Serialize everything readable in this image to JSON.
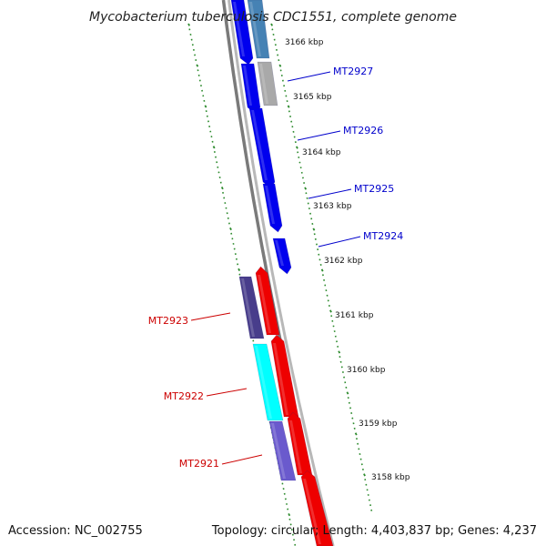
{
  "title": "Mycobacterium tuberculosis CDC1551, complete genome",
  "footer": {
    "accession": "Accession: NC_002755",
    "summary": "Topology: circular; Length: 4,403,837 bp; Genes: 4,237"
  },
  "colors": {
    "forward_label": "#0000cc",
    "reverse_label": "#cc0000",
    "backbone": "#808080",
    "ticks": "#2e8b2e"
  },
  "ruler": [
    {
      "label": "3166 kbp"
    },
    {
      "label": "3165 kbp"
    },
    {
      "label": "3164 kbp"
    },
    {
      "label": "3163 kbp"
    },
    {
      "label": "3162 kbp"
    },
    {
      "label": "3161 kbp"
    },
    {
      "label": "3160 kbp"
    },
    {
      "label": "3159 kbp"
    },
    {
      "label": "3158 kbp"
    }
  ],
  "gene_labels": [
    {
      "name": "MT2927",
      "strand": "forward"
    },
    {
      "name": "MT2926",
      "strand": "forward"
    },
    {
      "name": "MT2925",
      "strand": "forward"
    },
    {
      "name": "MT2924",
      "strand": "forward"
    },
    {
      "name": "MT2923",
      "strand": "reverse"
    },
    {
      "name": "MT2922",
      "strand": "reverse"
    },
    {
      "name": "MT2921",
      "strand": "reverse"
    }
  ],
  "features": [
    {
      "color": "#0000ee",
      "lane": "outer"
    },
    {
      "color": "#4682b4",
      "lane": "inner"
    },
    {
      "color": "#0000ee",
      "lane": "outer"
    },
    {
      "color": "#a9a9a9",
      "lane": "inner"
    },
    {
      "color": "#0000ee",
      "lane": "outer"
    },
    {
      "color": "#0000ee",
      "lane": "outer"
    },
    {
      "color": "#0000ee",
      "lane": "outer"
    },
    {
      "color": "#483d8b",
      "lane": "outer"
    },
    {
      "color": "#ee0000",
      "lane": "inner"
    },
    {
      "color": "#00ffff",
      "lane": "outer"
    },
    {
      "color": "#ee0000",
      "lane": "inner"
    },
    {
      "color": "#6a5acd",
      "lane": "outer"
    },
    {
      "color": "#ee0000",
      "lane": "inner"
    },
    {
      "color": "#ee0000",
      "lane": "inner"
    }
  ]
}
